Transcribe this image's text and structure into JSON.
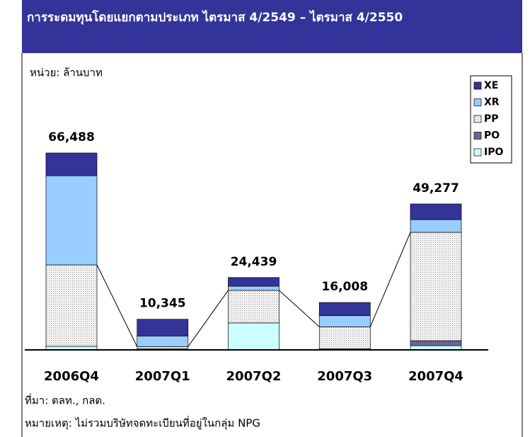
{
  "chart_data": {
    "type": "stacked-bar",
    "title": "การระดมทุนโดยแยกตามประเภท ไตรมาส 4/2549 – ไตรมาส 4/2550",
    "unit_label": "หน่วย: ล้านบาท",
    "source": "ที่มา: ตลท., กลต.",
    "note": "หมายเหตุ: ไม่รวมบริษัทจดทะเบียนที่อยู่ในกลุ่ม NPG",
    "categories": [
      "2006Q4",
      "2007Q1",
      "2007Q2",
      "2007Q3",
      "2007Q4"
    ],
    "series": [
      {
        "name": "IPO",
        "color": "#ccffff",
        "values": [
          1200,
          400,
          9100,
          0,
          1400
        ]
      },
      {
        "name": "PO",
        "color": "#666699",
        "values": [
          0,
          0,
          0,
          400,
          1700
        ]
      },
      {
        "name": "PP",
        "color": "#dddddd",
        "values": [
          27500,
          700,
          11000,
          7400,
          36600
        ]
      },
      {
        "name": "XR",
        "color": "#99ccff",
        "values": [
          30100,
          3600,
          1400,
          3800,
          4300
        ]
      },
      {
        "name": "XE",
        "color": "#333399",
        "values": [
          7688,
          5645,
          2939,
          4408,
          5277
        ]
      }
    ],
    "totals": [
      66488,
      10345,
      24439,
      16008,
      49277
    ],
    "total_labels": [
      "66,488",
      "10,345",
      "24,439",
      "16,008",
      "49,277"
    ],
    "legend": "top-right"
  }
}
